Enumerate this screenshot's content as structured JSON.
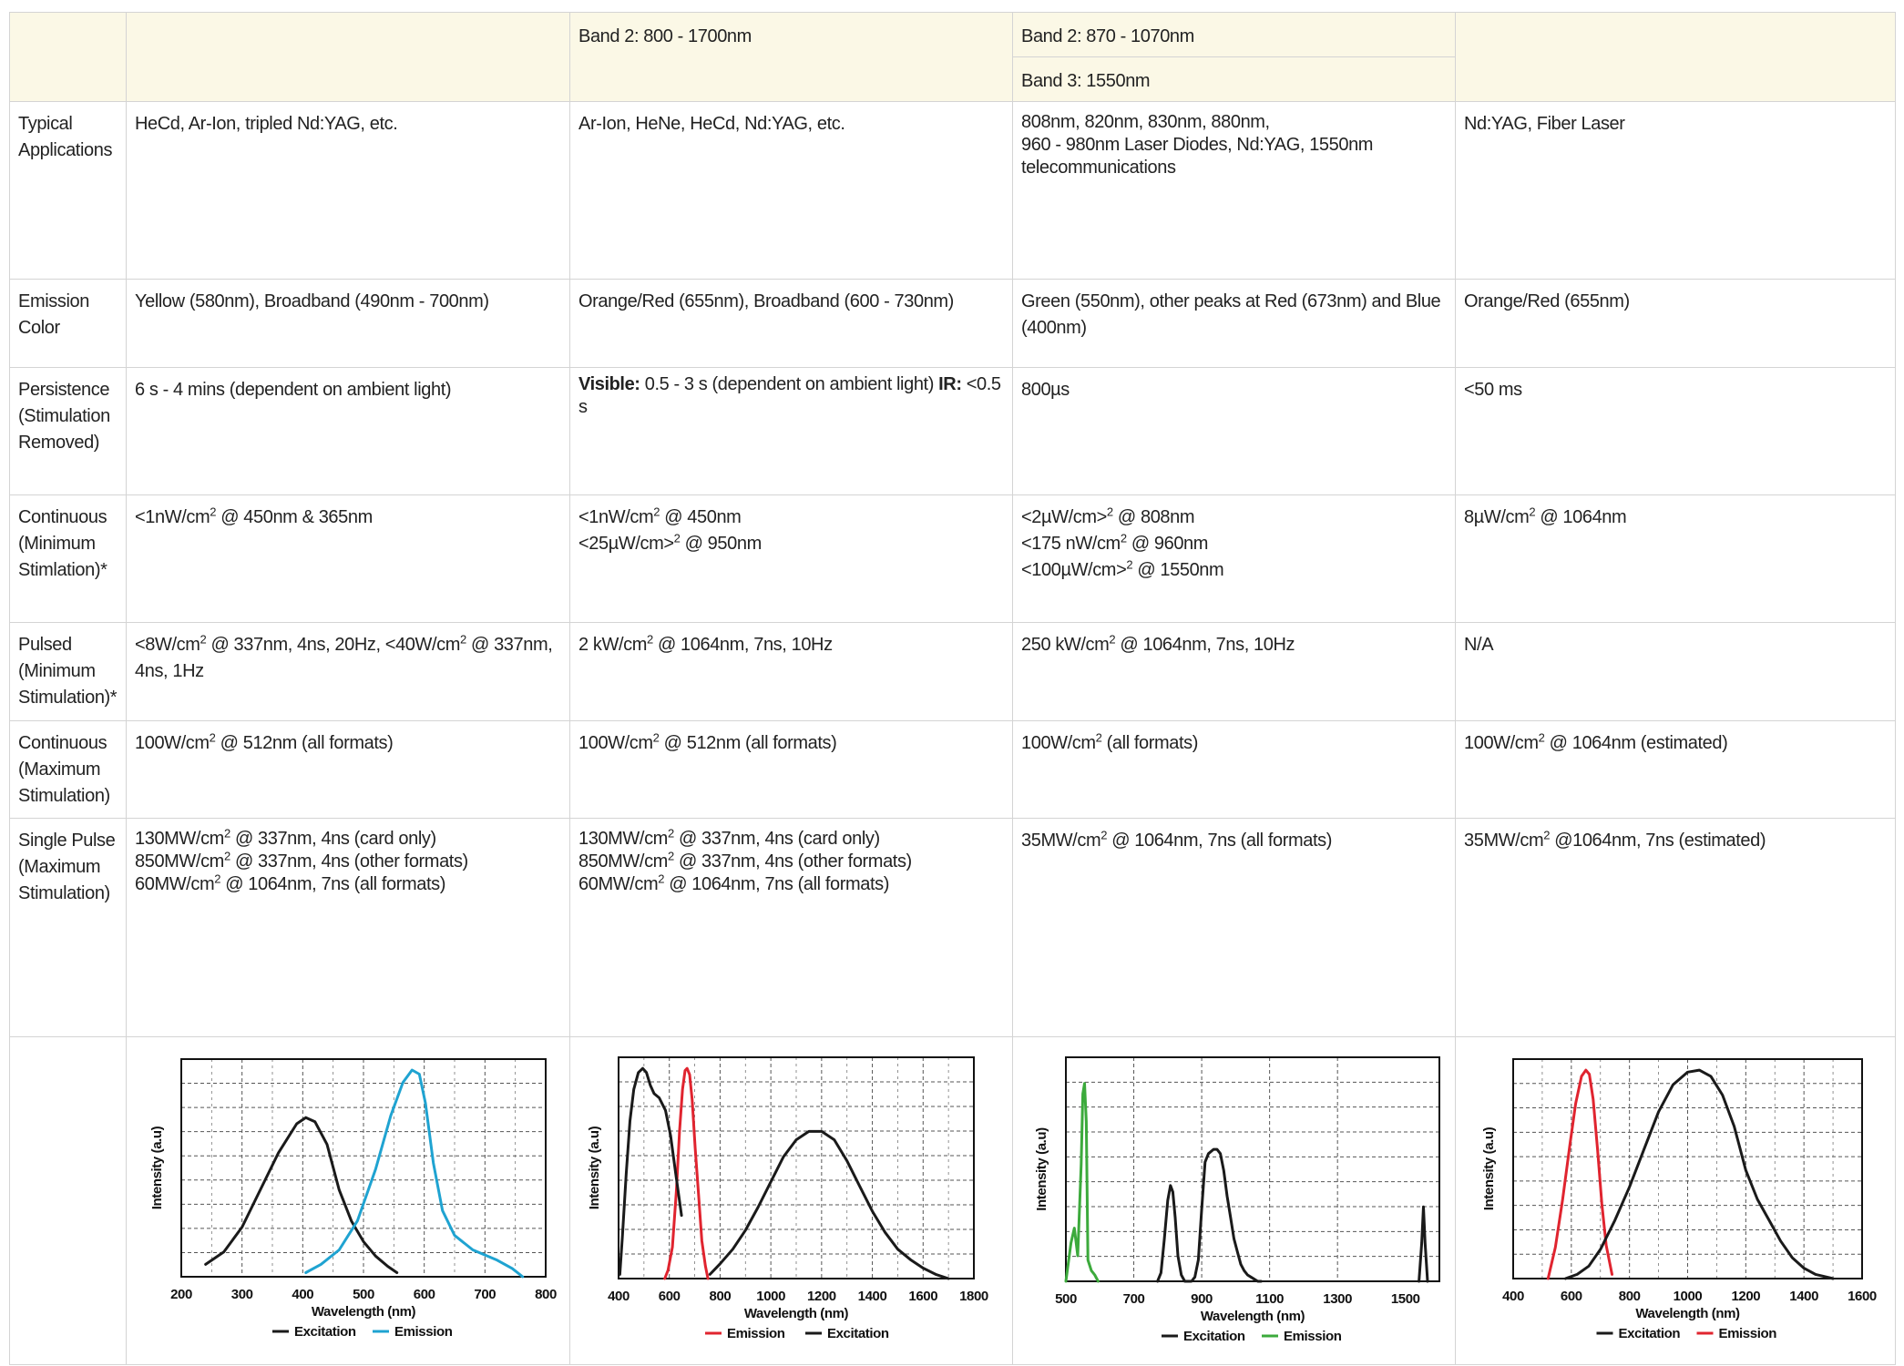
{
  "header": {
    "col2_band": "Band 2: 800 - 1700nm",
    "col3_band_a": "Band 2: 870 - 1070nm",
    "col3_band_b": "Band 3: 1550nm"
  },
  "rows": {
    "applications": {
      "label": [
        "Typical",
        "Applications"
      ],
      "c1": "HeCd, Ar-Ion, tripled Nd:YAG, etc.",
      "c2": "Ar-Ion, HeNe, HeCd, Nd:YAG, etc.",
      "c3": [
        "808nm, 820nm, 830nm, 880nm,",
        "960 - 980nm Laser Diodes, Nd:YAG, 1550nm",
        "telecommunications"
      ],
      "c4": "Nd:YAG, Fiber Laser"
    },
    "emission": {
      "label": [
        "Emission",
        "Color"
      ],
      "c1": "Yellow (580nm), Broadband (490nm - 700nm)",
      "c2": "Orange/Red (655nm), Broadband (600 - 730nm)",
      "c3": [
        "Green (550nm), other peaks at Red (673nm) and Blue",
        "(400nm)"
      ],
      "c4": "Orange/Red (655nm)"
    },
    "persistence": {
      "label": [
        "Persistence",
        "(Stimulation",
        "Removed)"
      ],
      "c1": "6 s - 4 mins (dependent on ambient light)",
      "c2_visible_label": "Visible:",
      "c2_visible_text": " 0.5 - 3 s (dependent on ambient light) ",
      "c2_ir_label": "IR:",
      "c2_ir_text": " <0.5",
      "c2_tail": "s",
      "c3": "800µs",
      "c4": "<50 ms"
    },
    "cont_min": {
      "label": [
        "Continuous",
        "(Minimum",
        "Stimlation)*"
      ],
      "c1": {
        "a": "<1nW/cm",
        "sup": "2",
        "b": " @ 450nm & 365nm"
      },
      "c2": [
        {
          "a": "<1nW/cm",
          "sup": "2",
          "b": " @ 450nm"
        },
        {
          "a": "<25µW/cm>",
          "sup": "2",
          "b": " @ 950nm"
        }
      ],
      "c3": [
        {
          "a": "<2µW/cm>",
          "sup": "2",
          "b": " @ 808nm"
        },
        {
          "a": "<175 nW/cm",
          "sup": "2",
          "b": " @ 960nm"
        },
        {
          "a": "<100µW/cm>",
          "sup": "2",
          "b": " @ 1550nm"
        }
      ],
      "c4": {
        "a": "8µW/cm",
        "sup": "2",
        "b": " @ 1064nm"
      }
    },
    "pulsed_min": {
      "label": [
        "Pulsed",
        "(Minimum",
        "Stimulation)*"
      ],
      "c1": {
        "a": "<8W/cm",
        "sup": "2",
        "b": " @ 337nm, 4ns, 20Hz, <40W/cm",
        "sup2": "2",
        "c": " @ 337nm,",
        "d": "4ns, 1Hz"
      },
      "c2": {
        "a": "2 kW/cm",
        "sup": "2",
        "b": " @ 1064nm, 7ns, 10Hz"
      },
      "c3": {
        "a": "250 kW/cm",
        "sup": "2",
        "b": " @ 1064nm, 7ns, 10Hz"
      },
      "c4": "N/A"
    },
    "cont_max": {
      "label": [
        "Continuous",
        "(Maximum",
        "Stimulation)"
      ],
      "c1": {
        "a": "100W/cm",
        "sup": "2",
        "b": " @ 512nm (all formats)"
      },
      "c2": {
        "a": "100W/cm",
        "sup": "2",
        "b": " @ 512nm (all formats)"
      },
      "c3": {
        "a": "100W/cm",
        "sup": "2",
        "b": " (all formats)"
      },
      "c4": {
        "a": "100W/cm",
        "sup": "2",
        "b": " @ 1064nm (estimated)"
      }
    },
    "single_pulse": {
      "label": [
        "Single Pulse",
        "(Maximum",
        "Stimulation)"
      ],
      "c1": [
        {
          "a": "130MW/cm",
          "sup": "2",
          "b": " @ 337nm, 4ns (card only)"
        },
        {
          "a": "850MW/cm",
          "sup": "2",
          "b": " @ 337nm, 4ns (other formats)"
        },
        {
          "a": "60MW/cm",
          "sup": "2",
          "b": " @ 1064nm, 7ns (all formats)"
        }
      ],
      "c2": [
        {
          "a": "130MW/cm",
          "sup": "2",
          "b": " @ 337nm, 4ns (card only)"
        },
        {
          "a": "850MW/cm",
          "sup": "2",
          "b": " @ 337nm, 4ns (other formats)"
        },
        {
          "a": "60MW/cm",
          "sup": "2",
          "b": " @ 1064nm, 7ns (all formats)"
        }
      ],
      "c3": {
        "a": "35MW/cm",
        "sup": "2",
        "b": " @ 1064nm, 7ns (all formats)"
      },
      "c4": {
        "a": "35MW/cm",
        "sup": "2",
        "b": " @1064nm, 7ns (estimated)"
      }
    }
  },
  "colors": {
    "header_bg": "#fbf8e6",
    "excitation": "#1a1a1a",
    "emission_blue": "#1fa3d1",
    "emission_red": "#e0242f",
    "emission_green": "#3caa3c"
  },
  "chart_data": [
    {
      "type": "line",
      "xlabel": "Wavelength (nm)",
      "ylabel": "Intensity (a.u)",
      "xlim": [
        200,
        800
      ],
      "xticks": [
        200,
        300,
        400,
        500,
        600,
        700,
        800
      ],
      "ylim": [
        0,
        1
      ],
      "grid": true,
      "legend": [
        {
          "name": "Excitation",
          "color": "#1a1a1a"
        },
        {
          "name": "Emission",
          "color": "#1fa3d1"
        }
      ],
      "series": [
        {
          "name": "Excitation",
          "color": "#1a1a1a",
          "x": [
            240,
            270,
            300,
            330,
            360,
            390,
            405,
            420,
            440,
            460,
            480,
            500,
            520,
            540,
            555
          ],
          "y": [
            0.06,
            0.12,
            0.24,
            0.42,
            0.6,
            0.74,
            0.77,
            0.75,
            0.64,
            0.42,
            0.27,
            0.17,
            0.1,
            0.05,
            0.02
          ]
        },
        {
          "name": "Emission",
          "color": "#1fa3d1",
          "x": [
            405,
            430,
            460,
            490,
            520,
            545,
            565,
            580,
            592,
            602,
            615,
            630,
            650,
            680,
            720,
            745,
            762
          ],
          "y": [
            0.02,
            0.06,
            0.13,
            0.27,
            0.52,
            0.78,
            0.94,
            1.0,
            0.98,
            0.84,
            0.55,
            0.32,
            0.2,
            0.13,
            0.08,
            0.04,
            0.0
          ]
        }
      ]
    },
    {
      "type": "line",
      "xlabel": "Wavelength (nm)",
      "ylabel": "Intensity (a.u)",
      "xlim": [
        400,
        1800
      ],
      "xticks": [
        400,
        600,
        800,
        1000,
        1200,
        1400,
        1600,
        1800
      ],
      "ylim": [
        0,
        1
      ],
      "grid": true,
      "legend": [
        {
          "name": "Emission",
          "color": "#e0242f"
        },
        {
          "name": "Excitation",
          "color": "#1a1a1a"
        }
      ],
      "series": [
        {
          "name": "Emission",
          "color": "#e0242f",
          "x": [
            582,
            595,
            612,
            628,
            640,
            652,
            662,
            670,
            680,
            690,
            702,
            715,
            728,
            742,
            752
          ],
          "y": [
            0.0,
            0.04,
            0.15,
            0.42,
            0.7,
            0.9,
            0.99,
            1.0,
            0.97,
            0.85,
            0.62,
            0.4,
            0.18,
            0.06,
            0.0
          ]
        },
        {
          "name": "Excitation",
          "color": "#1a1a1a",
          "x": [
            405,
            415,
            430,
            445,
            460,
            478,
            495,
            510,
            525,
            540,
            560,
            585,
            605,
            625,
            648
          ],
          "y": [
            0.02,
            0.2,
            0.5,
            0.75,
            0.9,
            0.98,
            1.0,
            0.98,
            0.92,
            0.88,
            0.86,
            0.8,
            0.68,
            0.5,
            0.3
          ],
          "x2": [
            760,
            800,
            850,
            900,
            950,
            1000,
            1050,
            1100,
            1150,
            1200,
            1250,
            1300,
            1350,
            1400,
            1450,
            1500,
            1550,
            1600,
            1650,
            1700
          ],
          "y2": [
            0.02,
            0.07,
            0.14,
            0.23,
            0.34,
            0.46,
            0.58,
            0.66,
            0.7,
            0.7,
            0.66,
            0.56,
            0.44,
            0.32,
            0.22,
            0.14,
            0.09,
            0.05,
            0.02,
            0.0
          ]
        }
      ]
    },
    {
      "type": "line",
      "xlabel": "Wavelength (nm)",
      "ylabel": "Intensity (a.u)",
      "xlim": [
        500,
        1600
      ],
      "xticks": [
        500,
        700,
        900,
        1100,
        1300,
        1500
      ],
      "ylim": [
        0,
        1
      ],
      "grid": true,
      "legend": [
        {
          "name": "Excitation",
          "color": "#1a1a1a"
        },
        {
          "name": "Emission",
          "color": "#3caa3c"
        }
      ],
      "series": [
        {
          "name": "Emission",
          "color": "#3caa3c",
          "x": [
            500,
            515,
            525,
            535,
            545,
            550,
            555,
            560,
            565,
            575,
            585,
            595
          ],
          "y": [
            0.0,
            0.18,
            0.25,
            0.12,
            0.55,
            0.88,
            0.93,
            0.75,
            0.1,
            0.05,
            0.03,
            0.0
          ]
        },
        {
          "name": "Excitation",
          "color": "#1a1a1a",
          "x": [
            770,
            780,
            790,
            800,
            808,
            815,
            822,
            830,
            840,
            850,
            860,
            870,
            880,
            890,
            900,
            910,
            920,
            935,
            945,
            955,
            965,
            975,
            985,
            995,
            1005,
            1015,
            1025,
            1035,
            1045,
            1055,
            1065,
            1075
          ],
          "y": [
            0.0,
            0.04,
            0.2,
            0.38,
            0.45,
            0.42,
            0.3,
            0.12,
            0.03,
            0.0,
            0.0,
            0.0,
            0.02,
            0.1,
            0.34,
            0.56,
            0.6,
            0.62,
            0.62,
            0.6,
            0.52,
            0.4,
            0.3,
            0.2,
            0.14,
            0.08,
            0.05,
            0.03,
            0.02,
            0.01,
            0.0,
            0.0
          ],
          "x2": [
            1540,
            1548,
            1553,
            1558,
            1565
          ],
          "y2": [
            0.0,
            0.18,
            0.35,
            0.18,
            0.0
          ]
        }
      ]
    },
    {
      "type": "line",
      "xlabel": "Wavelength (nm)",
      "ylabel": "Intensity (a.u)",
      "xlim": [
        400,
        1600
      ],
      "xticks": [
        400,
        600,
        800,
        1000,
        1200,
        1400,
        1600
      ],
      "ylim": [
        0,
        1
      ],
      "grid": true,
      "legend": [
        {
          "name": "Excitation",
          "color": "#1a1a1a"
        },
        {
          "name": "Emission",
          "color": "#e0242f"
        }
      ],
      "series": [
        {
          "name": "Emission",
          "color": "#e0242f",
          "x": [
            520,
            545,
            570,
            595,
            615,
            635,
            650,
            662,
            675,
            690,
            705,
            720,
            740
          ],
          "y": [
            0.0,
            0.15,
            0.38,
            0.64,
            0.84,
            0.97,
            1.0,
            0.98,
            0.86,
            0.62,
            0.36,
            0.16,
            0.02
          ]
        },
        {
          "name": "Excitation",
          "color": "#1a1a1a",
          "x": [
            580,
            620,
            660,
            700,
            750,
            800,
            850,
            900,
            950,
            1000,
            1040,
            1080,
            1120,
            1160,
            1200,
            1240,
            1280,
            1320,
            1360,
            1400,
            1440,
            1470,
            1500
          ],
          "y": [
            0.0,
            0.02,
            0.06,
            0.14,
            0.28,
            0.44,
            0.62,
            0.8,
            0.93,
            0.99,
            1.0,
            0.97,
            0.88,
            0.73,
            0.52,
            0.38,
            0.28,
            0.18,
            0.1,
            0.05,
            0.02,
            0.01,
            0.0
          ]
        }
      ]
    }
  ]
}
